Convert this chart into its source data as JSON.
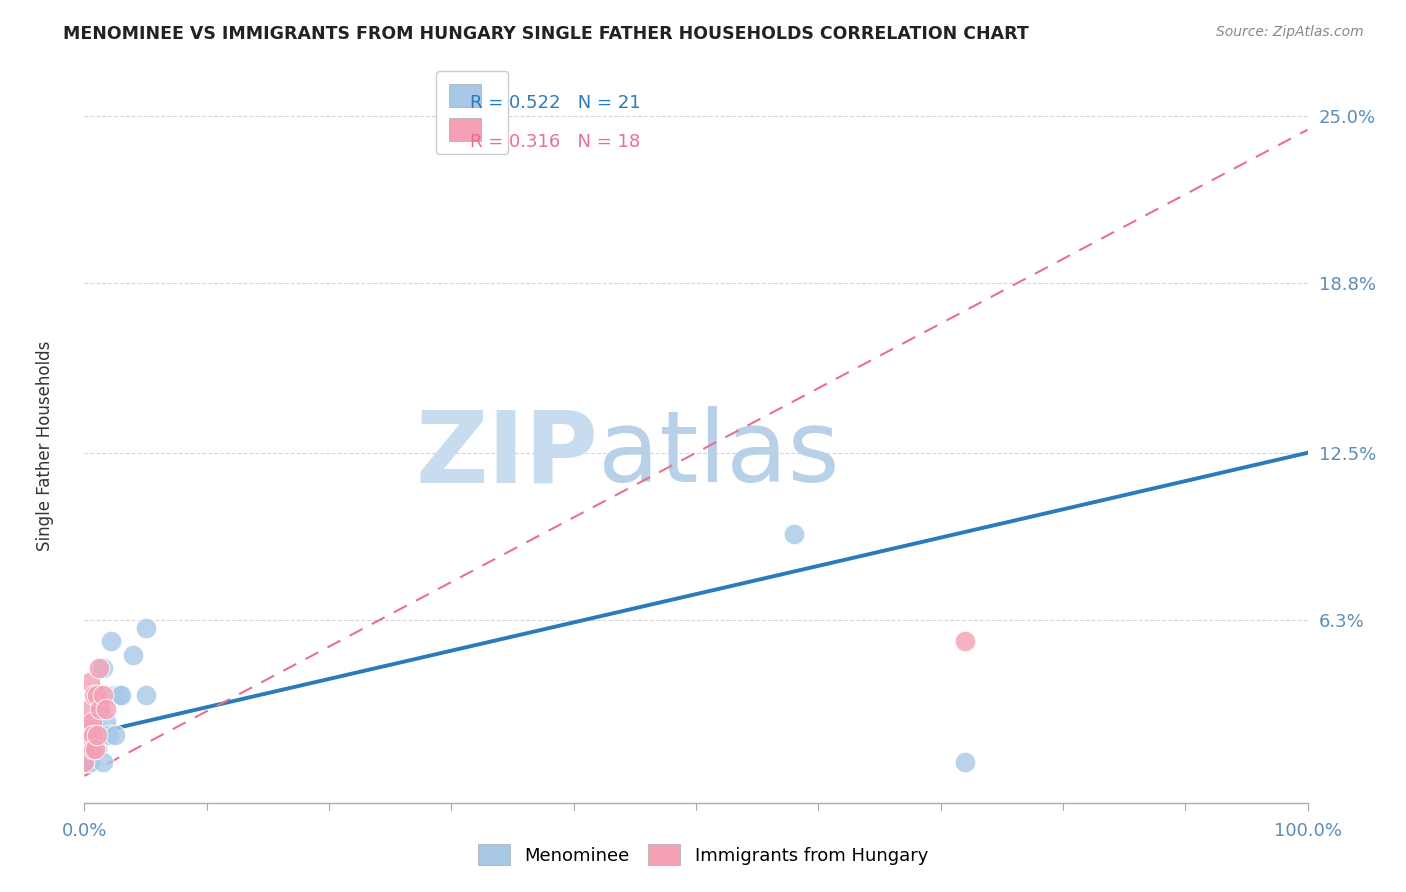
{
  "title": "MENOMINEE VS IMMIGRANTS FROM HUNGARY SINGLE FATHER HOUSEHOLDS CORRELATION CHART",
  "source": "Source: ZipAtlas.com",
  "ylabel": "Single Father Households",
  "ytick_labels": [
    "6.3%",
    "12.5%",
    "18.8%",
    "25.0%"
  ],
  "ytick_values": [
    0.063,
    0.125,
    0.188,
    0.25
  ],
  "xlim": [
    0,
    1.0
  ],
  "ylim": [
    -0.005,
    0.27
  ],
  "watermark_zip": "ZIP",
  "watermark_atlas": "atlas",
  "legend_r1": "R = 0.522",
  "legend_n1": "N = 21",
  "legend_r2": "R = 0.316",
  "legend_n2": "N = 18",
  "menominee_x": [
    0.0,
    0.003,
    0.005,
    0.008,
    0.01,
    0.012,
    0.013,
    0.015,
    0.015,
    0.018,
    0.02,
    0.022,
    0.025,
    0.025,
    0.028,
    0.03,
    0.04,
    0.05,
    0.05,
    0.58,
    0.72
  ],
  "menominee_y": [
    0.02,
    0.01,
    0.01,
    0.025,
    0.015,
    0.03,
    0.02,
    0.01,
    0.045,
    0.025,
    0.02,
    0.055,
    0.035,
    0.02,
    0.035,
    0.035,
    0.05,
    0.06,
    0.035,
    0.095,
    0.01
  ],
  "hungary_x": [
    0.0,
    0.0,
    0.002,
    0.003,
    0.004,
    0.005,
    0.006,
    0.007,
    0.007,
    0.008,
    0.009,
    0.01,
    0.01,
    0.012,
    0.013,
    0.015,
    0.018,
    0.72
  ],
  "hungary_y": [
    0.015,
    0.01,
    0.02,
    0.025,
    0.03,
    0.04,
    0.025,
    0.02,
    0.015,
    0.035,
    0.015,
    0.035,
    0.02,
    0.045,
    0.03,
    0.035,
    0.03,
    0.055
  ],
  "blue_line_x": [
    0.0,
    1.0
  ],
  "blue_line_y": [
    0.02,
    0.125
  ],
  "pink_line_x": [
    0.0,
    1.0
  ],
  "pink_line_y": [
    0.005,
    0.245
  ],
  "dot_color_blue": "#A8C8E8",
  "dot_color_pink": "#F4A0B5",
  "line_color_blue": "#2B7BBA",
  "line_color_pink": "#E87090",
  "title_color": "#222222",
  "tick_label_color": "#5B8DB8",
  "grid_color": "#CCCCCC",
  "watermark_color_zip": "#C8DCF0",
  "watermark_color_atlas": "#B8D0E8",
  "background_color": "#FFFFFF",
  "xtick_minor_positions": [
    0.1,
    0.2,
    0.3,
    0.4,
    0.5,
    0.6,
    0.7,
    0.8,
    0.9
  ]
}
